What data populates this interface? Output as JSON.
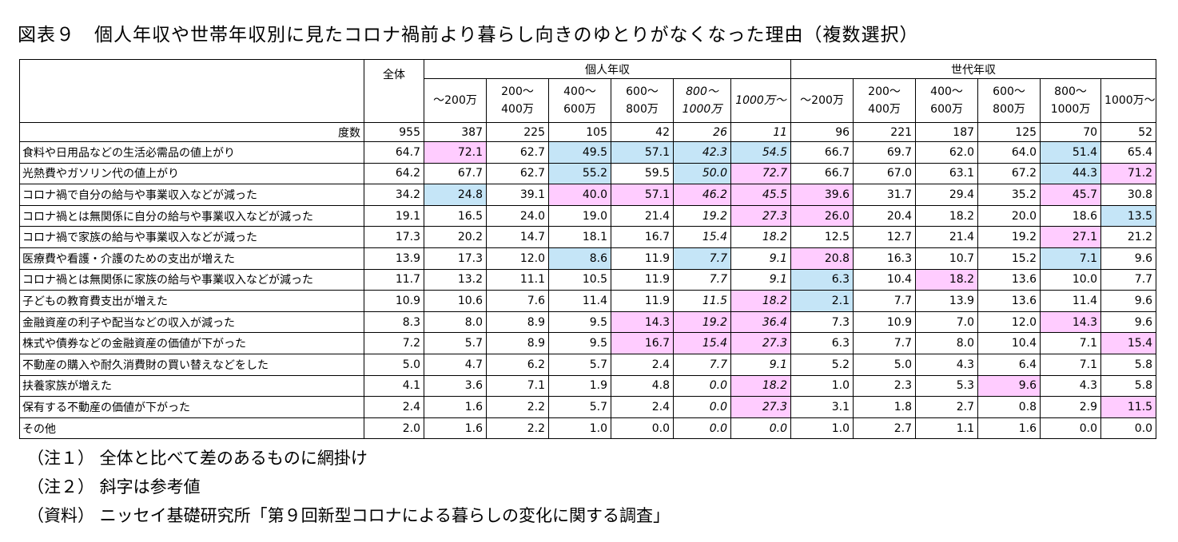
{
  "title": "図表９　個人年収や世帯年収別に見たコロナ禍前より暮らし向きのゆとりがなくなった理由（複数選択）",
  "header": {
    "total": "全体",
    "group_personal": "個人年収",
    "group_household": "世代年収",
    "personal_cols": [
      [
        "～200万"
      ],
      [
        "200～",
        "400万"
      ],
      [
        "400～",
        "600万"
      ],
      [
        "600～",
        "800万"
      ],
      [
        "800～",
        "1000万"
      ],
      [
        "1000万～"
      ]
    ],
    "household_cols": [
      [
        "～200万"
      ],
      [
        "200～",
        "400万"
      ],
      [
        "400～",
        "600万"
      ],
      [
        "600～",
        "800万"
      ],
      [
        "800～",
        "1000万"
      ],
      [
        "1000万～"
      ]
    ],
    "count_label": "度数",
    "counts": [
      "955",
      "387",
      "225",
      "105",
      "42",
      "26",
      "11",
      "96",
      "221",
      "187",
      "125",
      "70",
      "52"
    ]
  },
  "rows": [
    {
      "label": "食料や日用品などの生活必需品の値上がり",
      "values": [
        "64.7",
        "72.1",
        "62.7",
        "49.5",
        "57.1",
        "42.3",
        "54.5",
        "66.7",
        "69.7",
        "62.0",
        "64.0",
        "51.4",
        "65.4"
      ],
      "shade": [
        "",
        "p",
        "",
        "b",
        "b",
        "b",
        "b",
        "",
        "",
        "",
        "",
        "b",
        ""
      ]
    },
    {
      "label": "光熱費やガソリン代の値上がり",
      "values": [
        "64.2",
        "67.7",
        "62.7",
        "55.2",
        "59.5",
        "50.0",
        "72.7",
        "66.7",
        "67.0",
        "63.1",
        "67.2",
        "44.3",
        "71.2"
      ],
      "shade": [
        "",
        "",
        "",
        "b",
        "",
        "b",
        "p",
        "",
        "",
        "",
        "",
        "b",
        "p"
      ]
    },
    {
      "label": "コロナ禍で自分の給与や事業収入などが減った",
      "values": [
        "34.2",
        "24.8",
        "39.1",
        "40.0",
        "57.1",
        "46.2",
        "45.5",
        "39.6",
        "31.7",
        "29.4",
        "35.2",
        "45.7",
        "30.8"
      ],
      "shade": [
        "",
        "b",
        "",
        "p",
        "p",
        "p",
        "p",
        "p",
        "",
        "",
        "",
        "p",
        ""
      ]
    },
    {
      "label": "コロナ禍とは無関係に自分の給与や事業収入などが減った",
      "values": [
        "19.1",
        "16.5",
        "24.0",
        "19.0",
        "21.4",
        "19.2",
        "27.3",
        "26.0",
        "20.4",
        "18.2",
        "20.0",
        "18.6",
        "13.5"
      ],
      "shade": [
        "",
        "",
        "",
        "",
        "",
        "",
        "p",
        "p",
        "",
        "",
        "",
        "",
        "b"
      ]
    },
    {
      "label": "コロナ禍で家族の給与や事業収入などが減った",
      "values": [
        "17.3",
        "20.2",
        "14.7",
        "18.1",
        "16.7",
        "15.4",
        "18.2",
        "12.5",
        "12.7",
        "21.4",
        "19.2",
        "27.1",
        "21.2"
      ],
      "shade": [
        "",
        "",
        "",
        "",
        "",
        "",
        "",
        "",
        "",
        "",
        "",
        "p",
        ""
      ]
    },
    {
      "label": "医療費や看護・介護のための支出が増えた",
      "values": [
        "13.9",
        "17.3",
        "12.0",
        "8.6",
        "11.9",
        "7.7",
        "9.1",
        "20.8",
        "16.3",
        "10.7",
        "15.2",
        "7.1",
        "9.6"
      ],
      "shade": [
        "",
        "",
        "",
        "b",
        "",
        "b",
        "",
        "p",
        "",
        "",
        "",
        "b",
        ""
      ]
    },
    {
      "label": "コロナ禍とは無関係に家族の給与や事業収入などが減った",
      "values": [
        "11.7",
        "13.2",
        "11.1",
        "10.5",
        "11.9",
        "7.7",
        "9.1",
        "6.3",
        "10.4",
        "18.2",
        "13.6",
        "10.0",
        "7.7"
      ],
      "shade": [
        "",
        "",
        "",
        "",
        "",
        "",
        "",
        "b",
        "",
        "p",
        "",
        "",
        ""
      ]
    },
    {
      "label": "子どもの教育費支出が増えた",
      "values": [
        "10.9",
        "10.6",
        "7.6",
        "11.4",
        "11.9",
        "11.5",
        "18.2",
        "2.1",
        "7.7",
        "13.9",
        "13.6",
        "11.4",
        "9.6"
      ],
      "shade": [
        "",
        "",
        "",
        "",
        "",
        "",
        "p",
        "b",
        "",
        "",
        "",
        "",
        ""
      ]
    },
    {
      "label": "金融資産の利子や配当などの収入が減った",
      "values": [
        "8.3",
        "8.0",
        "8.9",
        "9.5",
        "14.3",
        "19.2",
        "36.4",
        "7.3",
        "10.9",
        "7.0",
        "12.0",
        "14.3",
        "9.6"
      ],
      "shade": [
        "",
        "",
        "",
        "",
        "p",
        "p",
        "p",
        "",
        "",
        "",
        "",
        "p",
        ""
      ]
    },
    {
      "label": "株式や債券などの金融資産の価値が下がった",
      "values": [
        "7.2",
        "5.7",
        "8.9",
        "9.5",
        "16.7",
        "15.4",
        "27.3",
        "6.3",
        "7.7",
        "8.0",
        "10.4",
        "7.1",
        "15.4"
      ],
      "shade": [
        "",
        "",
        "",
        "",
        "p",
        "p",
        "p",
        "",
        "",
        "",
        "",
        "",
        "p"
      ]
    },
    {
      "label": "不動産の購入や耐久消費財の買い替えなどをした",
      "values": [
        "5.0",
        "4.7",
        "6.2",
        "5.7",
        "2.4",
        "7.7",
        "9.1",
        "5.2",
        "5.0",
        "4.3",
        "6.4",
        "7.1",
        "5.8"
      ],
      "shade": [
        "",
        "",
        "",
        "",
        "",
        "",
        "",
        "",
        "",
        "",
        "",
        "",
        ""
      ]
    },
    {
      "label": "扶養家族が増えた",
      "values": [
        "4.1",
        "3.6",
        "7.1",
        "1.9",
        "4.8",
        "0.0",
        "18.2",
        "1.0",
        "2.3",
        "5.3",
        "9.6",
        "4.3",
        "5.8"
      ],
      "shade": [
        "",
        "",
        "",
        "",
        "",
        "",
        "p",
        "",
        "",
        "",
        "p",
        "",
        ""
      ]
    },
    {
      "label": "保有する不動産の価値が下がった",
      "values": [
        "2.4",
        "1.6",
        "2.2",
        "5.7",
        "2.4",
        "0.0",
        "27.3",
        "3.1",
        "1.8",
        "2.7",
        "0.8",
        "2.9",
        "11.5"
      ],
      "shade": [
        "",
        "",
        "",
        "",
        "",
        "",
        "p",
        "",
        "",
        "",
        "",
        "",
        "p"
      ]
    },
    {
      "label": "その他",
      "values": [
        "2.0",
        "1.6",
        "2.2",
        "1.0",
        "0.0",
        "0.0",
        "0.0",
        "1.0",
        "2.7",
        "1.1",
        "1.6",
        "0.0",
        "0.0"
      ],
      "shade": [
        "",
        "",
        "",
        "",
        "",
        "",
        "",
        "",
        "",
        "",
        "",
        "",
        ""
      ]
    }
  ],
  "notes": [
    "（注１） 全体と比べて差のあるものに網掛け",
    "（注２） 斜字は参考値",
    "（資料） ニッセイ基礎研究所「第９回新型コロナによる暮らしの変化に関する調査」"
  ],
  "colors": {
    "highlight_pink": "#ffccff",
    "highlight_blue": "#c5e5f7"
  }
}
